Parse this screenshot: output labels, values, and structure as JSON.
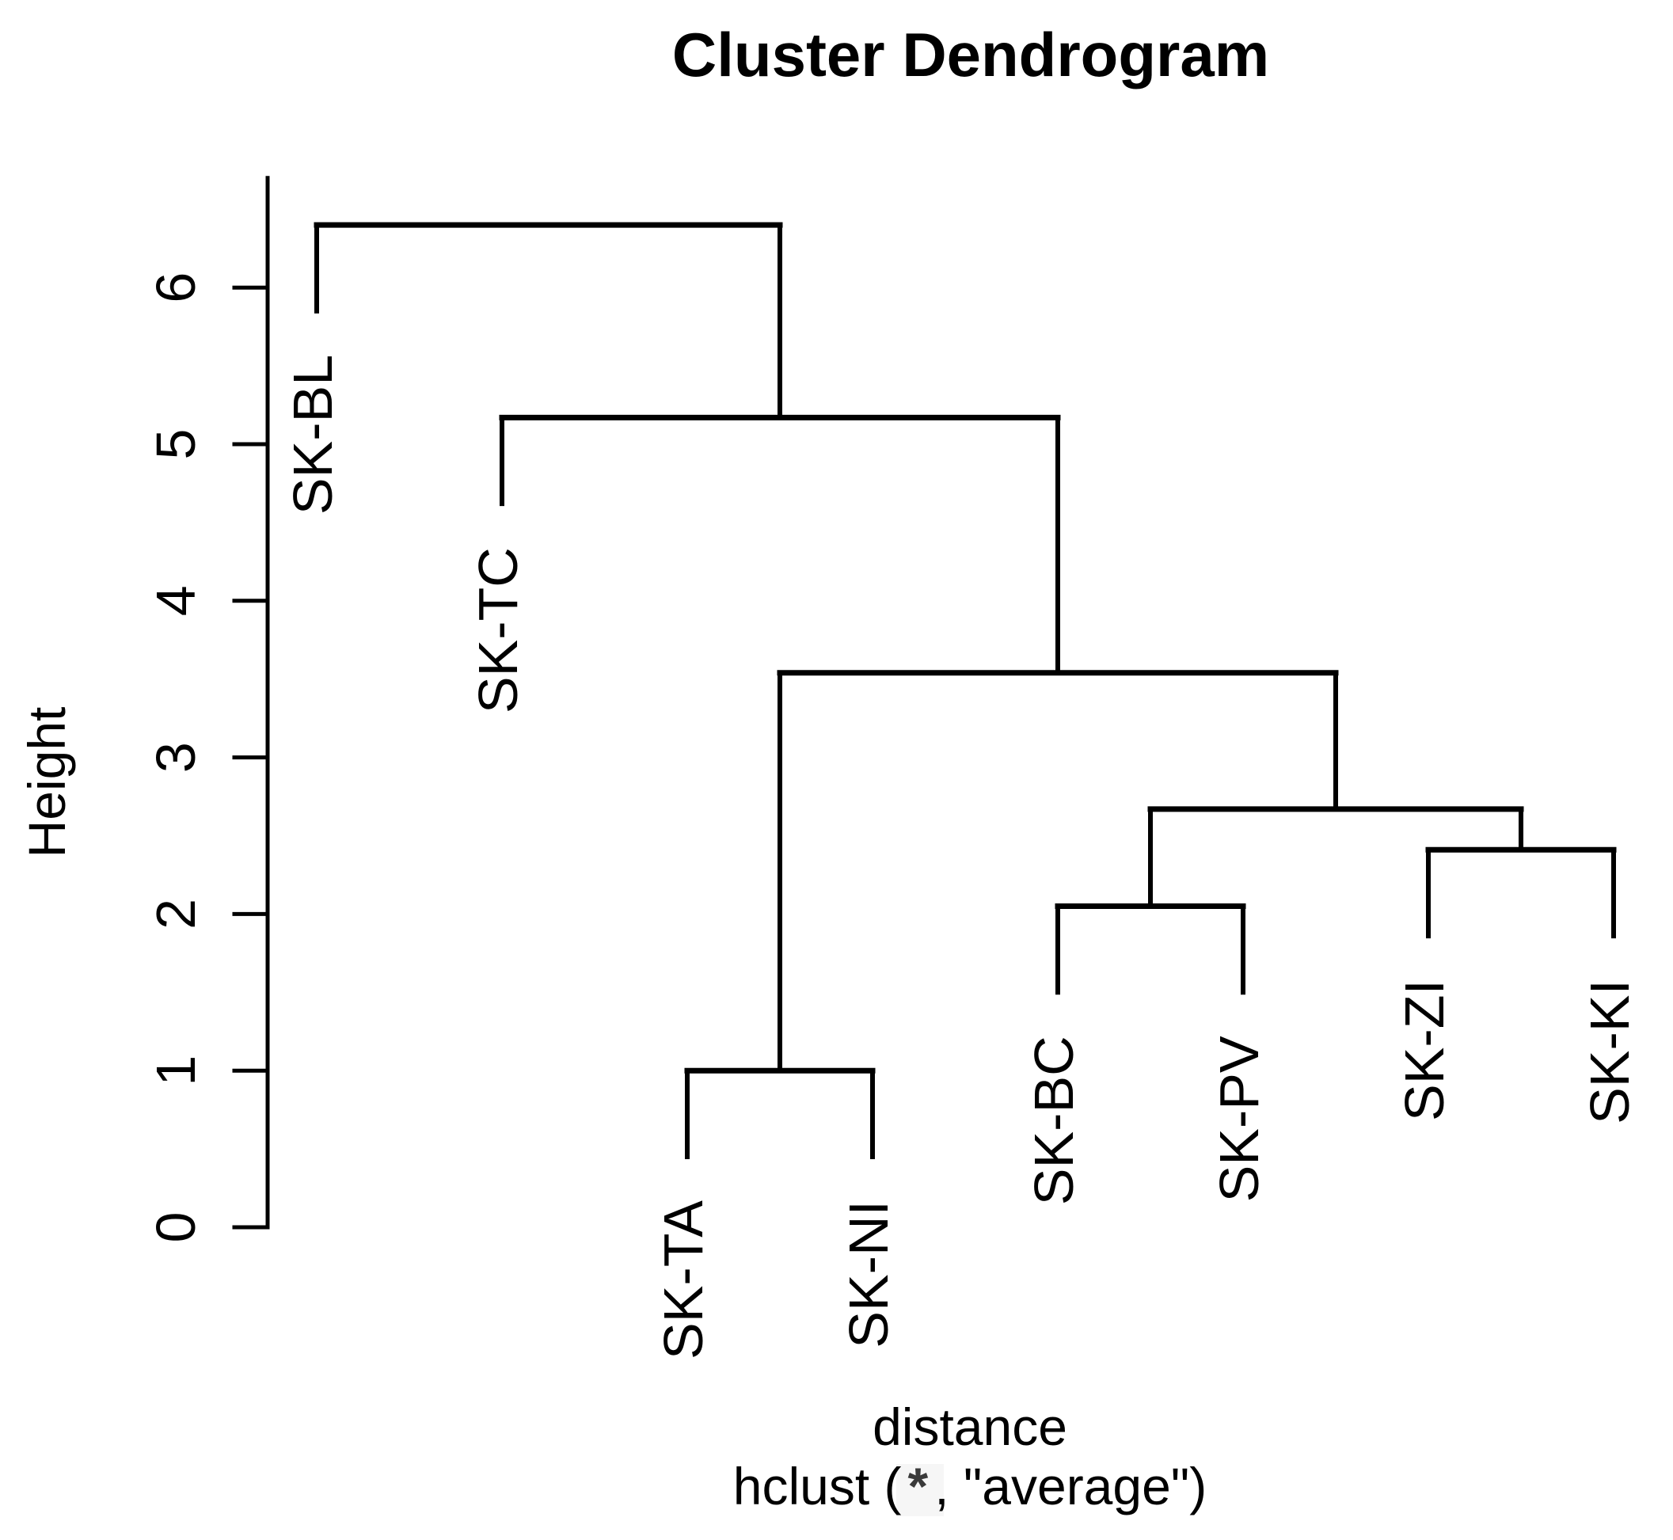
{
  "title": "Cluster Dendrogram",
  "y_axis": {
    "label": "Height",
    "tick_labels": [
      "0",
      "1",
      "2",
      "3",
      "4",
      "5",
      "6"
    ]
  },
  "x_axis": {
    "label": "distance",
    "sub_prefix": "hclust (",
    "sub_star": "*",
    "sub_suffix": ", \"average\")"
  },
  "chart_data": {
    "type": "dendrogram",
    "title": "Cluster Dendrogram",
    "ylabel": "Height",
    "xlabel": "distance",
    "sub": "hclust (*, \"average\")",
    "method": "average",
    "leaves": [
      "SK-BL",
      "SK-TC",
      "SK-TA",
      "SK-NI",
      "SK-BC",
      "SK-PV",
      "SK-ZI",
      "SK-KI"
    ],
    "merges": [
      {
        "children": [
          "SK-TA",
          "SK-NI"
        ],
        "height": 1.0
      },
      {
        "children": [
          "SK-BC",
          "SK-PV"
        ],
        "height": 2.05
      },
      {
        "children": [
          "SK-ZI",
          "SK-KI"
        ],
        "height": 2.41
      },
      {
        "children": [
          "m2",
          "m3"
        ],
        "height": 2.67
      },
      {
        "children": [
          "m1",
          "m4"
        ],
        "height": 3.54
      },
      {
        "children": [
          "SK-TC",
          "m5"
        ],
        "height": 5.17
      },
      {
        "children": [
          "SK-BL",
          "m6"
        ],
        "height": 6.4
      }
    ],
    "hang": 0.55,
    "ylim": [
      0,
      6.7
    ],
    "yticks": [
      0,
      1,
      2,
      3,
      4,
      5,
      6
    ],
    "grid": false,
    "legend": null,
    "line_color": "#000000",
    "background_color": "#ffffff"
  }
}
